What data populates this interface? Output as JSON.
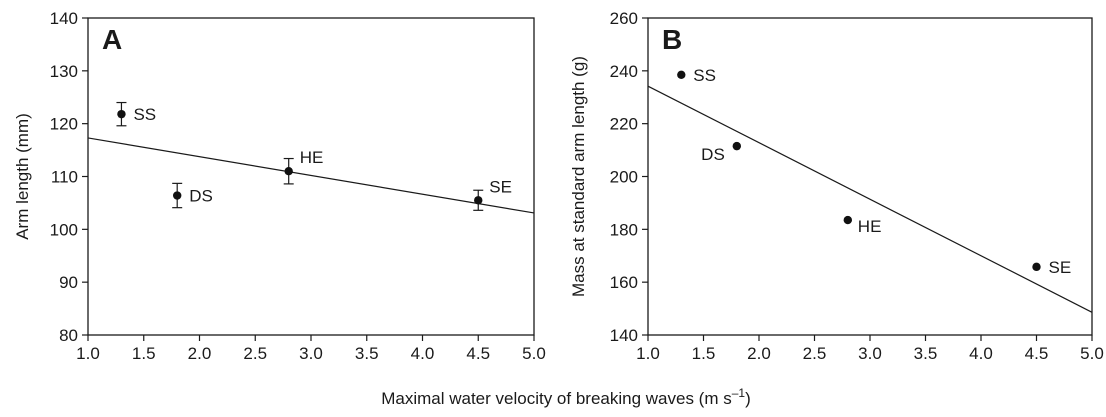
{
  "figure": {
    "xlabel_main": "Maximal water velocity of breaking waves (m s",
    "xlabel_sup": "–1",
    "xlabel_end": ")"
  },
  "chart_data": [
    {
      "type": "scatter",
      "panel": "A",
      "ylabel": "Arm length (mm)",
      "xlim": [
        1.0,
        5.0
      ],
      "ylim": [
        80,
        140
      ],
      "xticks": [
        1.0,
        1.5,
        2.0,
        2.5,
        3.0,
        3.5,
        4.0,
        4.5,
        5.0
      ],
      "xtick_labels": [
        "1.0",
        "1.5",
        "2.0",
        "2.5",
        "3.0",
        "3.5",
        "4.0",
        "4.5",
        "5.0"
      ],
      "yticks": [
        80,
        90,
        100,
        110,
        120,
        130,
        140
      ],
      "ytick_labels": [
        "80",
        "90",
        "100",
        "110",
        "120",
        "130",
        "140"
      ],
      "grid": false,
      "points": [
        {
          "label": "SS",
          "x": 1.3,
          "y": 121.8,
          "err": 2.2,
          "label_pos": "right"
        },
        {
          "label": "DS",
          "x": 1.8,
          "y": 106.4,
          "err": 2.3,
          "label_pos": "right"
        },
        {
          "label": "HE",
          "x": 2.8,
          "y": 111.0,
          "err": 2.4,
          "label_pos": "above-right"
        },
        {
          "label": "SE",
          "x": 4.5,
          "y": 105.5,
          "err": 1.9,
          "label_pos": "above-right"
        }
      ],
      "regression": {
        "x": [
          1.0,
          5.0
        ],
        "y": [
          117.3,
          103.1
        ]
      }
    },
    {
      "type": "scatter",
      "panel": "B",
      "ylabel": "Mass at standard arm length (g)",
      "xlim": [
        1.0,
        5.0
      ],
      "ylim": [
        140,
        260
      ],
      "xticks": [
        1.0,
        1.5,
        2.0,
        2.5,
        3.0,
        3.5,
        4.0,
        4.5,
        5.0
      ],
      "xtick_labels": [
        "1.0",
        "1.5",
        "2.0",
        "2.5",
        "3.0",
        "3.5",
        "4.0",
        "4.5",
        "5.0"
      ],
      "yticks": [
        140,
        160,
        180,
        200,
        220,
        240,
        260
      ],
      "ytick_labels": [
        "140",
        "160",
        "180",
        "200",
        "220",
        "240",
        "260"
      ],
      "grid": false,
      "points": [
        {
          "label": "SS",
          "x": 1.3,
          "y": 238.5,
          "label_pos": "right"
        },
        {
          "label": "DS",
          "x": 1.8,
          "y": 211.5,
          "label_pos": "below-left"
        },
        {
          "label": "HE",
          "x": 2.8,
          "y": 183.5,
          "label_pos": "below-right"
        },
        {
          "label": "SE",
          "x": 4.5,
          "y": 165.8,
          "label_pos": "right"
        }
      ],
      "regression": {
        "x": [
          1.0,
          5.0
        ],
        "y": [
          234.2,
          148.6
        ]
      }
    }
  ]
}
